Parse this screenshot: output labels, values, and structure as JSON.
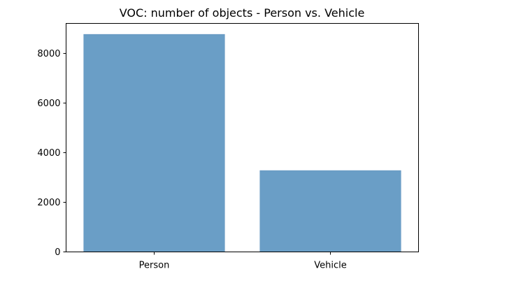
{
  "chart_data": {
    "type": "bar",
    "title": "VOC: number of objects - Person vs. Vehicle",
    "categories": [
      "Person",
      "Vehicle"
    ],
    "values": [
      8770,
      3280
    ],
    "xlabel": "",
    "ylabel": "",
    "ylim": [
      0,
      9210
    ],
    "yticks": [
      0,
      2000,
      4000,
      6000,
      8000
    ],
    "grid": false,
    "legend": "none",
    "bar_color": "#6a9ec6",
    "bar_edge_color": "#5a8fbd"
  }
}
